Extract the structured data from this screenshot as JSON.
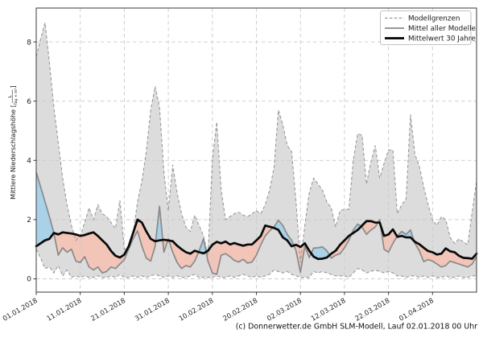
{
  "chart_data": {
    "type": "area",
    "title": "",
    "xlabel": "",
    "ylabel_plain": "Mittlere Niederschlagshöhe [L/(Tag × m²)]",
    "ylabel_prefix": "Mittlere Niederschlagshöhe [",
    "ylabel_fraction_numerator": "L",
    "ylabel_fraction_denominator": "Tag × m²",
    "ylabel_suffix": "]",
    "caption": "(c) Donnerwetter.de GmbH SLM-Modell, Lauf 02.01.2018 00 Uhr",
    "grid": {
      "show": true,
      "style": "dashed",
      "color": "#c9c9c9"
    },
    "legend": {
      "position": "upper right",
      "entries": [
        {
          "label": "Modellgrenzen",
          "style": "dashed-gray"
        },
        {
          "label": "Mittel aller Modelle",
          "style": "solid-gray"
        },
        {
          "label": "Mittelwert 30 Jahre",
          "style": "solid-black"
        }
      ]
    },
    "ylim": [
      -0.45,
      9.15
    ],
    "y_ticks": [
      0,
      2,
      4,
      6,
      8
    ],
    "x_day_range": [
      0,
      100
    ],
    "x_ticks": [
      {
        "day": 0,
        "label": "01.01.2018"
      },
      {
        "day": 10,
        "label": "11.01.2018"
      },
      {
        "day": 20,
        "label": "21.01.2018"
      },
      {
        "day": 30,
        "label": "31.01.2018"
      },
      {
        "day": 40,
        "label": "10.02.2018"
      },
      {
        "day": 50,
        "label": "20.02.2018"
      },
      {
        "day": 60,
        "label": "02.03.2018"
      },
      {
        "day": 70,
        "label": "12.03.2018"
      },
      {
        "day": 80,
        "label": "22.03.2018"
      },
      {
        "day": 90,
        "label": "01.04.2018"
      }
    ],
    "fills": {
      "model_range": "#dcdcdc",
      "above_normal": "#a9d1e8",
      "below_normal": "#f3c5b8"
    },
    "colors": {
      "bounds": "#9a9a9a",
      "model_mean": "#8a8a8a",
      "climate_mean": "#0a0a0a",
      "spine": "#3a3a3a"
    },
    "series": [
      {
        "name": "Modellgrenze oben",
        "role": "upper_bound",
        "style": "dashed",
        "values": [
          7.5,
          8.1,
          8.65,
          7.3,
          5.8,
          4.6,
          3.4,
          2.5,
          1.8,
          1.3,
          1.45,
          1.9,
          2.4,
          2.0,
          2.5,
          2.2,
          2.1,
          1.9,
          1.7,
          2.65,
          1.0,
          1.05,
          1.5,
          2.6,
          3.3,
          4.3,
          5.7,
          6.5,
          5.8,
          3.6,
          2.3,
          3.85,
          2.9,
          2.2,
          1.75,
          1.6,
          2.15,
          1.8,
          1.45,
          0.8,
          4.0,
          5.3,
          3.0,
          2.0,
          2.1,
          2.2,
          2.25,
          2.15,
          2.1,
          2.2,
          2.3,
          2.2,
          2.5,
          3.0,
          3.75,
          5.7,
          5.2,
          4.5,
          4.3,
          2.6,
          0.55,
          1.8,
          2.9,
          3.4,
          3.2,
          3.0,
          2.6,
          2.4,
          1.75,
          2.3,
          2.35,
          2.35,
          4.0,
          4.9,
          4.85,
          3.2,
          3.95,
          4.5,
          3.4,
          3.9,
          4.35,
          4.35,
          2.2,
          2.5,
          2.7,
          5.55,
          4.2,
          3.8,
          3.1,
          2.5,
          2.0,
          1.8,
          2.1,
          2.0,
          1.4,
          1.2,
          1.35,
          1.25,
          1.15,
          2.25,
          3.3
        ]
      },
      {
        "name": "Modellgrenze unten",
        "role": "lower_bound",
        "style": "dashed",
        "values": [
          1.0,
          0.7,
          0.35,
          0.4,
          0.2,
          0.45,
          0.1,
          0.3,
          0.05,
          0.1,
          0.05,
          0.1,
          0.05,
          0.05,
          0.1,
          0.05,
          0.05,
          0.1,
          0.05,
          0.15,
          0.05,
          0.05,
          0.1,
          0.05,
          0.1,
          0.05,
          0.1,
          0.15,
          0.1,
          0.05,
          0.1,
          0.05,
          0.1,
          0.05,
          0.05,
          0.1,
          0.15,
          0.05,
          0.05,
          0.05,
          0.05,
          0.1,
          0.05,
          0.05,
          0.1,
          0.05,
          0.1,
          0.15,
          0.1,
          0.05,
          0.1,
          0.05,
          0.1,
          0.15,
          0.3,
          0.25,
          0.2,
          0.25,
          0.15,
          0.1,
          0.05,
          0.05,
          0.05,
          0.25,
          0.2,
          0.25,
          0.2,
          0.15,
          0.1,
          0.1,
          0.1,
          0.05,
          0.2,
          0.35,
          0.3,
          0.2,
          0.25,
          0.3,
          0.25,
          0.2,
          0.25,
          0.2,
          0.1,
          0.1,
          0.05,
          0.1,
          0.1,
          0.05,
          0.1,
          0.05,
          0.1,
          0.05,
          0.05,
          0.1,
          0.05,
          0.05,
          0.1,
          0.05,
          0.05,
          0.1,
          0.1
        ]
      },
      {
        "name": "Mittel aller Modelle",
        "role": "model_mean",
        "style": "solid",
        "values": [
          3.6,
          3.1,
          2.6,
          2.1,
          1.55,
          0.8,
          1.05,
          0.9,
          1.0,
          0.6,
          0.55,
          0.75,
          0.4,
          0.3,
          0.4,
          0.2,
          0.25,
          0.4,
          0.35,
          0.5,
          0.65,
          1.0,
          1.35,
          1.62,
          1.1,
          0.7,
          0.6,
          1.1,
          2.45,
          0.9,
          1.35,
          0.9,
          0.55,
          0.35,
          0.45,
          0.4,
          0.6,
          0.95,
          1.35,
          0.6,
          0.2,
          0.15,
          0.8,
          0.85,
          0.75,
          0.62,
          0.57,
          0.66,
          0.53,
          0.57,
          0.8,
          1.15,
          1.45,
          1.62,
          1.75,
          1.98,
          1.8,
          1.5,
          1.3,
          0.95,
          0.22,
          1.1,
          0.72,
          1.04,
          1.05,
          1.08,
          0.95,
          0.7,
          0.8,
          0.85,
          1.05,
          1.3,
          1.65,
          1.85,
          1.75,
          1.5,
          1.65,
          1.75,
          2.0,
          1.0,
          0.9,
          1.2,
          1.45,
          1.6,
          1.5,
          1.65,
          1.2,
          0.95,
          0.58,
          0.65,
          0.6,
          0.5,
          0.4,
          0.45,
          0.6,
          0.55,
          0.5,
          0.45,
          0.4,
          0.5,
          0.75
        ]
      },
      {
        "name": "Mittelwert 30 Jahre",
        "role": "climate_mean",
        "style": "solid",
        "values": [
          1.1,
          1.2,
          1.3,
          1.35,
          1.55,
          1.5,
          1.57,
          1.55,
          1.53,
          1.5,
          1.45,
          1.48,
          1.53,
          1.57,
          1.45,
          1.3,
          1.16,
          0.94,
          0.78,
          0.72,
          0.82,
          1.1,
          1.55,
          2.0,
          1.9,
          1.6,
          1.35,
          1.27,
          1.3,
          1.32,
          1.3,
          1.27,
          1.12,
          1.0,
          0.9,
          0.85,
          0.95,
          0.9,
          0.86,
          0.95,
          1.15,
          1.25,
          1.2,
          1.26,
          1.16,
          1.21,
          1.16,
          1.12,
          1.16,
          1.16,
          1.3,
          1.45,
          1.8,
          1.76,
          1.72,
          1.65,
          1.4,
          1.3,
          1.1,
          1.15,
          1.08,
          1.2,
          0.95,
          0.75,
          0.67,
          0.68,
          0.72,
          0.85,
          0.95,
          1.15,
          1.3,
          1.45,
          1.55,
          1.65,
          1.8,
          1.95,
          1.95,
          1.9,
          1.9,
          1.45,
          1.5,
          1.67,
          1.42,
          1.45,
          1.4,
          1.4,
          1.25,
          1.17,
          1.05,
          0.94,
          0.9,
          0.82,
          0.85,
          1.03,
          0.93,
          0.9,
          0.78,
          0.71,
          0.7,
          0.68,
          0.85
        ]
      }
    ]
  }
}
